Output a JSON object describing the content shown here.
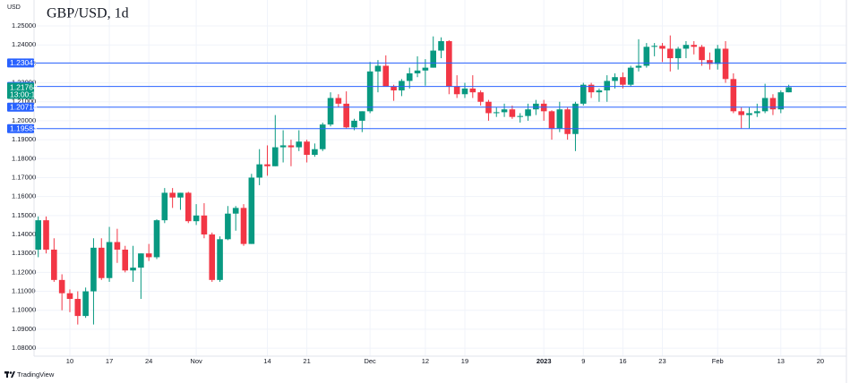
{
  "chart_data": {
    "type": "candlestick",
    "title": "GBP/USD, 1d",
    "y_label": "USD",
    "footer": "TradingView",
    "categories": [
      null,
      null,
      null,
      null,
      "10",
      null,
      null,
      null,
      null,
      "17",
      null,
      null,
      null,
      null,
      "24",
      null,
      null,
      null,
      null,
      null,
      "Nov",
      null,
      null,
      null,
      null,
      null,
      null,
      null,
      null,
      "14",
      null,
      null,
      null,
      null,
      "21",
      null,
      null,
      null,
      null,
      null,
      null,
      null,
      "Dec",
      null,
      null,
      null,
      null,
      null,
      null,
      "12",
      null,
      null,
      null,
      null,
      "19",
      null,
      null,
      null,
      null,
      null,
      null,
      null,
      null,
      null,
      "2023",
      null,
      null,
      null,
      null,
      "9",
      null,
      null,
      null,
      null,
      "16",
      null,
      null,
      null,
      null,
      "23",
      null,
      null,
      null,
      null,
      null,
      null,
      "Feb",
      null,
      null,
      null,
      null,
      null,
      null,
      null,
      "13",
      null,
      null,
      null,
      null,
      "20"
    ],
    "open": [
      1.132,
      1.1475,
      1.132,
      1.116,
      1.109,
      1.106,
      1.097,
      1.11,
      1.133,
      1.117,
      1.136,
      1.132,
      1.121,
      1.1225,
      1.13,
      1.128,
      1.1475,
      1.162,
      1.1595,
      1.162,
      1.147,
      1.15,
      1.14,
      1.116,
      1.1375,
      1.151,
      1.154,
      1.135,
      1.17,
      1.177,
      1.176,
      1.186,
      1.187,
      1.186,
      1.189,
      1.182,
      1.185,
      1.198,
      1.212,
      1.209,
      1.1965,
      1.2,
      1.205,
      1.226,
      1.229,
      1.218,
      1.216,
      1.221,
      1.225,
      1.2265,
      1.228,
      1.237,
      1.242,
      1.218,
      1.214,
      1.217,
      1.215,
      1.21,
      1.204,
      1.2045,
      1.206,
      1.202,
      1.2025,
      1.206,
      1.209,
      1.205,
      1.196,
      1.206,
      1.193,
      1.209,
      1.219,
      1.215,
      1.216,
      1.221,
      1.223,
      1.219,
      1.228,
      1.229,
      1.239,
      1.2395,
      1.238,
      1.233,
      1.238,
      1.24,
      1.239,
      1.232,
      1.23,
      1.238,
      1.222,
      1.205,
      1.203,
      1.204,
      1.205,
      1.212,
      1.206,
      1.215,
      null,
      null,
      null,
      null
    ],
    "high": [
      1.1495,
      1.1495,
      1.138,
      1.119,
      1.111,
      1.11,
      1.112,
      1.138,
      1.138,
      1.144,
      1.143,
      1.134,
      1.134,
      1.13,
      1.135,
      1.148,
      1.1645,
      1.1645,
      1.162,
      1.1625,
      1.156,
      1.1565,
      1.141,
      1.139,
      1.155,
      1.155,
      1.156,
      1.172,
      1.185,
      1.187,
      1.203,
      1.195,
      1.19,
      1.195,
      1.19,
      1.188,
      1.199,
      1.215,
      1.214,
      1.2155,
      1.201,
      1.205,
      1.231,
      1.232,
      1.2345,
      1.219,
      1.222,
      1.228,
      1.234,
      1.2325,
      1.2445,
      1.244,
      1.2425,
      1.224,
      1.22,
      1.224,
      1.216,
      1.211,
      1.207,
      1.209,
      1.208,
      1.204,
      1.209,
      1.211,
      1.211,
      1.2055,
      1.21,
      1.207,
      1.21,
      1.22,
      1.22,
      1.217,
      1.224,
      1.225,
      1.2255,
      1.229,
      1.243,
      1.241,
      1.241,
      1.241,
      1.245,
      1.239,
      1.242,
      1.242,
      1.24,
      1.236,
      1.24,
      1.242,
      1.225,
      1.207,
      1.207,
      1.209,
      1.2195,
      1.214,
      1.216,
      1.219,
      null,
      null,
      null,
      null
    ],
    "low": [
      1.128,
      1.13,
      1.115,
      1.1,
      1.099,
      1.0925,
      1.096,
      1.0925,
      1.116,
      1.115,
      1.125,
      1.12,
      1.115,
      1.106,
      1.126,
      1.127,
      1.146,
      1.154,
      1.153,
      1.146,
      1.145,
      1.138,
      1.115,
      1.115,
      1.137,
      1.142,
      1.134,
      1.135,
      1.166,
      1.171,
      1.176,
      1.178,
      1.176,
      1.184,
      1.178,
      1.181,
      1.184,
      1.197,
      1.207,
      1.196,
      1.195,
      1.194,
      1.204,
      1.215,
      1.218,
      1.2105,
      1.213,
      1.217,
      1.223,
      1.2185,
      1.228,
      1.233,
      1.214,
      1.212,
      1.212,
      1.212,
      1.208,
      1.2,
      1.202,
      1.202,
      1.201,
      1.199,
      1.2,
      1.203,
      1.2,
      1.19,
      1.194,
      1.19,
      1.184,
      1.208,
      1.212,
      1.21,
      1.21,
      1.217,
      1.217,
      1.218,
      1.226,
      1.228,
      1.234,
      1.231,
      1.226,
      1.227,
      1.233,
      1.235,
      1.229,
      1.227,
      1.227,
      1.22,
      1.204,
      1.196,
      1.196,
      1.202,
      1.204,
      1.203,
      1.204,
      1.215,
      null,
      null,
      null,
      null
    ],
    "close": [
      1.1475,
      1.132,
      1.116,
      1.109,
      1.106,
      1.097,
      1.11,
      1.133,
      1.117,
      1.136,
      1.132,
      1.121,
      1.1225,
      1.13,
      1.128,
      1.1475,
      1.162,
      1.1595,
      1.162,
      1.147,
      1.15,
      1.14,
      1.116,
      1.1375,
      1.151,
      1.154,
      1.135,
      1.17,
      1.177,
      1.176,
      1.186,
      1.187,
      1.186,
      1.189,
      1.182,
      1.185,
      1.198,
      1.212,
      1.209,
      1.1965,
      1.2,
      1.205,
      1.226,
      1.229,
      1.218,
      1.216,
      1.221,
      1.225,
      1.2265,
      1.228,
      1.237,
      1.242,
      1.218,
      1.214,
      1.217,
      1.215,
      1.21,
      1.204,
      1.2045,
      1.206,
      1.202,
      1.2025,
      1.206,
      1.209,
      1.205,
      1.196,
      1.206,
      1.193,
      1.209,
      1.219,
      1.215,
      1.216,
      1.221,
      1.223,
      1.219,
      1.228,
      1.229,
      1.239,
      1.2395,
      1.238,
      1.233,
      1.238,
      1.24,
      1.239,
      1.232,
      1.23,
      1.238,
      1.222,
      1.205,
      1.203,
      1.204,
      1.205,
      1.212,
      1.206,
      1.215,
      1.21764,
      null,
      null,
      null,
      null
    ],
    "up_color": "#089981",
    "down_color": "#f23645",
    "ylim": [
      1.0758,
      1.2637
    ],
    "yticks": [
      {
        "value": 1.08,
        "label": "1.08000"
      },
      {
        "value": 1.09,
        "label": "1.09000"
      },
      {
        "value": 1.1,
        "label": "1.10000"
      },
      {
        "value": 1.11,
        "label": "1.11000"
      },
      {
        "value": 1.12,
        "label": "1.12000"
      },
      {
        "value": 1.13,
        "label": "1.13000"
      },
      {
        "value": 1.14,
        "label": "1.14000"
      },
      {
        "value": 1.15,
        "label": "1.15000"
      },
      {
        "value": 1.16,
        "label": "1.16000"
      },
      {
        "value": 1.17,
        "label": "1.17000"
      },
      {
        "value": 1.18,
        "label": "1.18000"
      },
      {
        "value": 1.19,
        "label": "1.19000"
      },
      {
        "value": 1.2,
        "label": "1.20000"
      },
      {
        "value": 1.21,
        "label": "1.21000"
      },
      {
        "value": 1.22,
        "label": "1.22000"
      },
      {
        "value": 1.23,
        "label": "1.23000"
      },
      {
        "value": 1.24,
        "label": "1.24000"
      },
      {
        "value": 1.25,
        "label": "1.25000"
      }
    ],
    "grid": true,
    "horizontal_lines": [
      {
        "value": 1.23047,
        "label": "1.23047"
      },
      {
        "value": 1.21809,
        "label": "1.21809"
      },
      {
        "value": 1.20718,
        "label": "1.20718"
      },
      {
        "value": 1.19583,
        "label": "1.19583"
      }
    ],
    "line_color": "#2962ff",
    "last_price": {
      "value": 1.21764,
      "label": "1.21764",
      "countdown": "13:00:11"
    }
  }
}
